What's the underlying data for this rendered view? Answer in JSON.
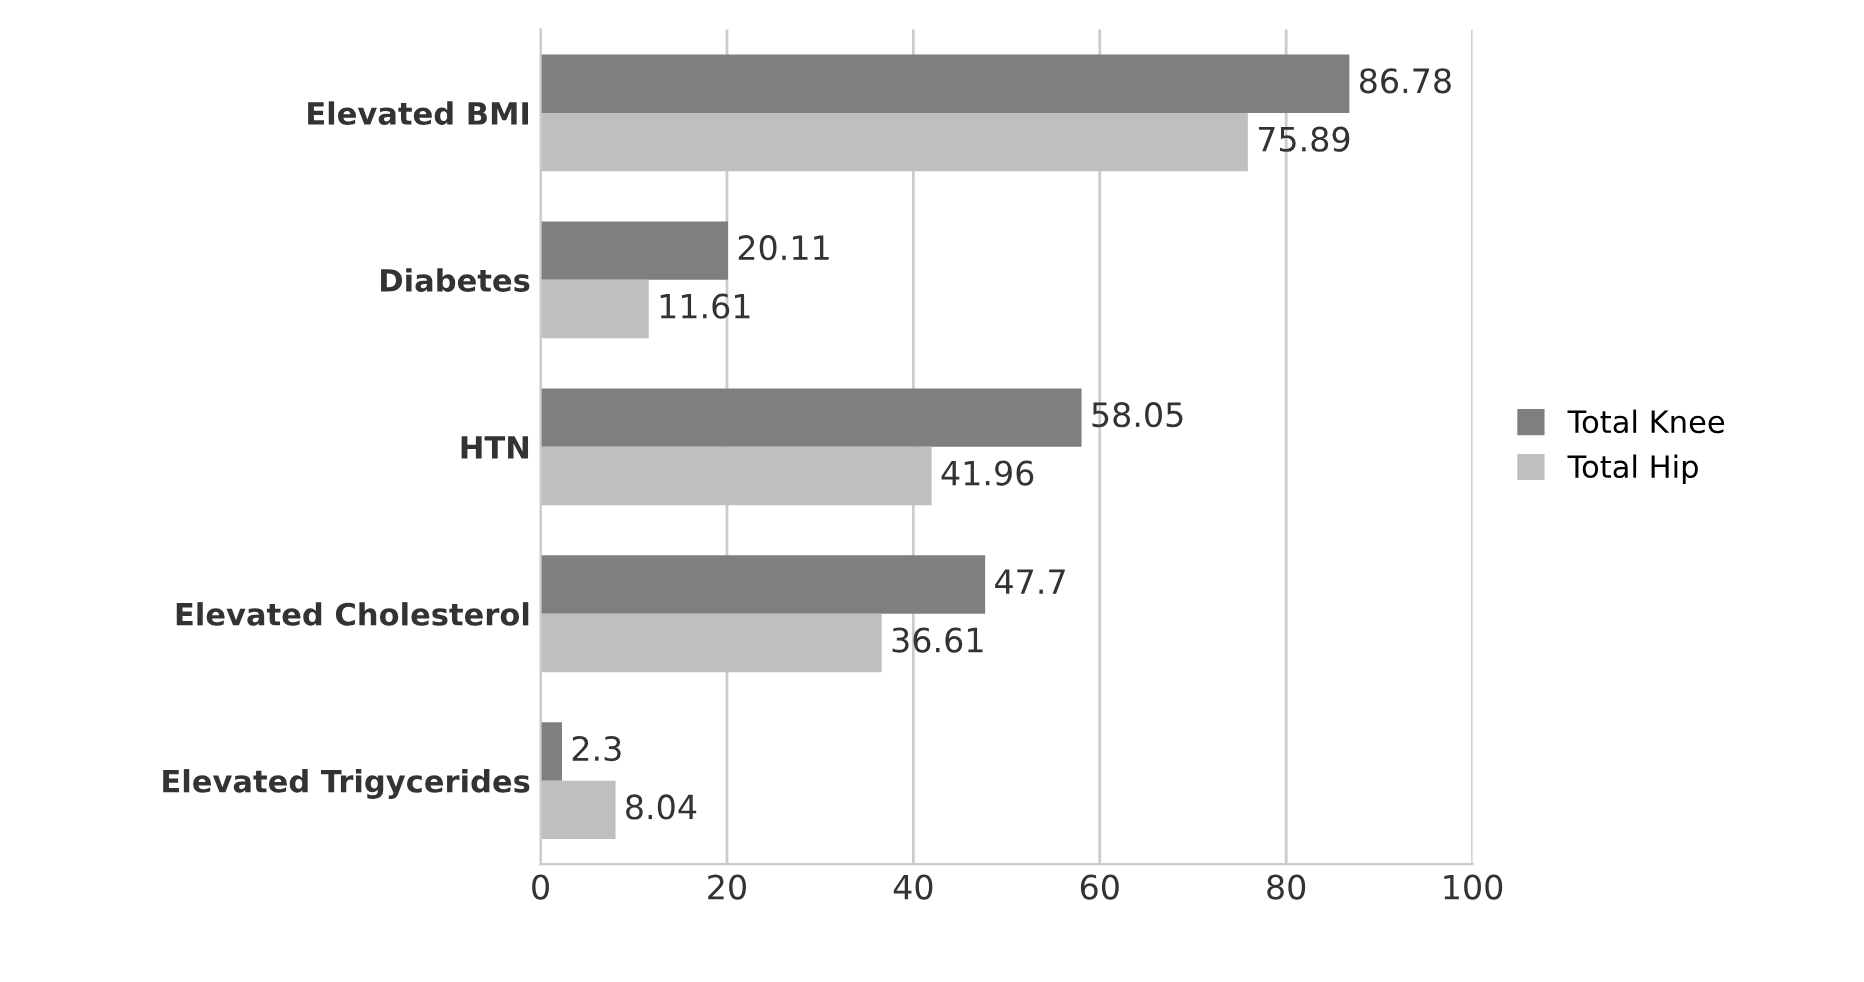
{
  "chart_data": {
    "type": "bar",
    "orientation": "horizontal",
    "categories": [
      "Elevated BMI",
      "Diabetes",
      "HTN",
      "Elevated Cholesterol",
      "Elevated Trigycerides"
    ],
    "series": [
      {
        "name": "Total Knee",
        "color": "#7f7f7f",
        "values": [
          86.78,
          20.11,
          58.05,
          47.7,
          2.3
        ]
      },
      {
        "name": "Total Hip",
        "color": "#bfbfbf",
        "values": [
          75.89,
          11.61,
          41.96,
          36.61,
          8.04
        ]
      }
    ],
    "xlim": [
      0,
      100
    ],
    "xticks": [
      0,
      20,
      40,
      60,
      80,
      100
    ],
    "grid": "x",
    "legend": "right",
    "data_labels": true
  }
}
